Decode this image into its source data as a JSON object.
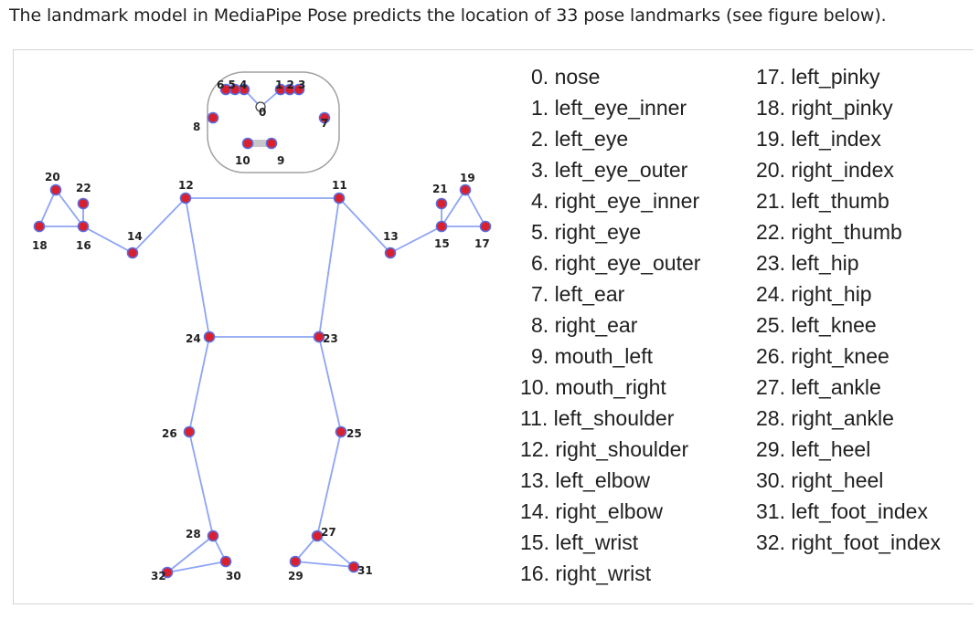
{
  "caption": "The landmark model in MediaPipe Pose predicts the location of 33 pose landmarks (see figure below).",
  "colors": {
    "line": "#8da4f4",
    "point_fill": "#d8202f",
    "point_ring": "#5a6de0",
    "head_outline": "#a0a0a0"
  },
  "landmarks": [
    "0. nose",
    "1. left_eye_inner",
    "2. left_eye",
    "3. left_eye_outer",
    "4. right_eye_inner",
    "5. right_eye",
    "6. right_eye_outer",
    "7. left_ear",
    "8. right_ear",
    "9. mouth_left",
    "10. mouth_right",
    "11. left_shoulder",
    "12. right_shoulder",
    "13. left_elbow",
    "14. right_elbow",
    "15. left_wrist",
    "16. right_wrist",
    "17. left_pinky",
    "18. right_pinky",
    "19. left_index",
    "20. right_index",
    "21. left_thumb",
    "22. right_thumb",
    "23. left_hip",
    "24. right_hip",
    "25. left_knee",
    "26. right_knee",
    "27. left_ankle",
    "28. right_ankle",
    "29. left_heel",
    "30. right_heel",
    "31. left_foot_index",
    "32. right_foot_index"
  ],
  "diagram_labels": {
    "n0": "0",
    "n123": "1 2 3",
    "n654": "6 5 4",
    "n7": "7",
    "n8": "8",
    "n9": "9",
    "n10": "10",
    "n11": "11",
    "n12": "12",
    "n13": "13",
    "n14": "14",
    "n15": "15",
    "n16": "16",
    "n17": "17",
    "n18": "18",
    "n19": "19",
    "n20": "20",
    "n21": "21",
    "n22": "22",
    "n23": "23",
    "n24": "24",
    "n25": "25",
    "n26": "26",
    "n27": "27",
    "n28": "28",
    "n29": "29",
    "n30": "30",
    "n31": "31",
    "n32": "32"
  }
}
